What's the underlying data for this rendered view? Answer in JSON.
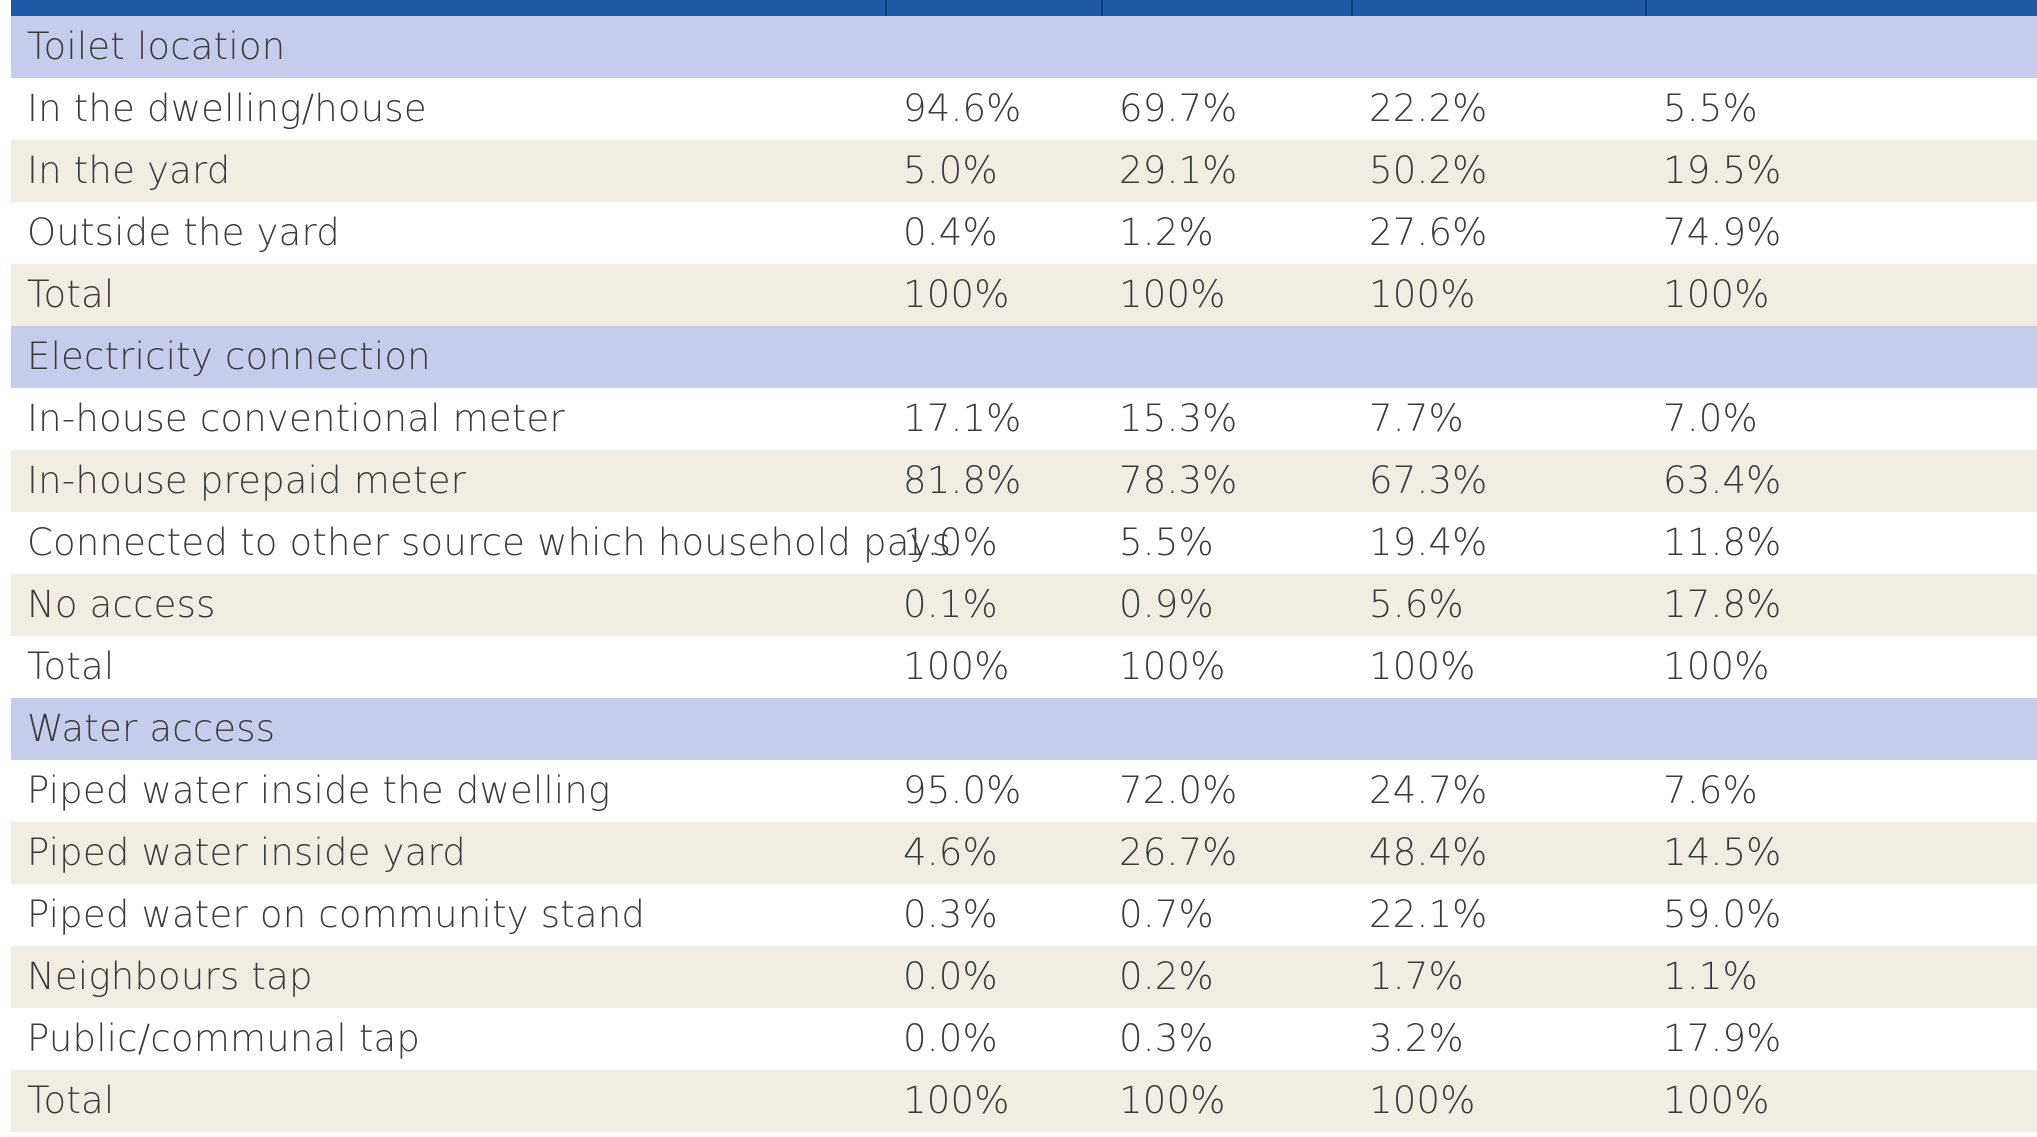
{
  "colors": {
    "header": "#1f5aa6",
    "section_row": "#c6cdea",
    "shaded_row": "#f1ede3",
    "text": "#3a3a3a"
  },
  "sections": [
    {
      "title": "Toilet location",
      "rows": [
        {
          "label": "In the dwelling/house",
          "values": [
            "94.6%",
            "69.7%",
            "22.2%",
            "5.5%"
          ]
        },
        {
          "label": "In the yard",
          "values": [
            "5.0%",
            "29.1%",
            "50.2%",
            "19.5%"
          ]
        },
        {
          "label": "Outside the yard",
          "values": [
            "0.4%",
            "1.2%",
            "27.6%",
            "74.9%"
          ]
        },
        {
          "label": "Total",
          "values": [
            "100%",
            "100%",
            "100%",
            "100%"
          ]
        }
      ]
    },
    {
      "title": "Electricity connection",
      "rows": [
        {
          "label": "In-house conventional meter",
          "values": [
            "17.1%",
            "15.3%",
            "7.7%",
            "7.0%"
          ]
        },
        {
          "label": "In-house prepaid meter",
          "values": [
            "81.8%",
            "78.3%",
            "67.3%",
            "63.4%"
          ]
        },
        {
          "label": "Connected to other source which household pays",
          "values": [
            "1.0%",
            "5.5%",
            "19.4%",
            "11.8%"
          ]
        },
        {
          "label": "No access",
          "values": [
            "0.1%",
            "0.9%",
            "5.6%",
            "17.8%"
          ]
        },
        {
          "label": "Total",
          "values": [
            "100%",
            "100%",
            "100%",
            "100%"
          ]
        }
      ]
    },
    {
      "title": "Water access",
      "rows": [
        {
          "label": "Piped water inside the dwelling",
          "values": [
            "95.0%",
            "72.0%",
            "24.7%",
            "7.6%"
          ]
        },
        {
          "label": "Piped water inside yard",
          "values": [
            "4.6%",
            "26.7%",
            "48.4%",
            "14.5%"
          ]
        },
        {
          "label": "Piped water on community stand",
          "values": [
            "0.3%",
            "0.7%",
            "22.1%",
            "59.0%"
          ]
        },
        {
          "label": "Neighbours tap",
          "values": [
            "0.0%",
            "0.2%",
            "1.7%",
            "1.1%"
          ]
        },
        {
          "label": "Public/communal tap",
          "values": [
            "0.0%",
            "0.3%",
            "3.2%",
            "17.9%"
          ]
        },
        {
          "label": "Total",
          "values": [
            "100%",
            "100%",
            "100%",
            "100%"
          ]
        }
      ]
    }
  ]
}
